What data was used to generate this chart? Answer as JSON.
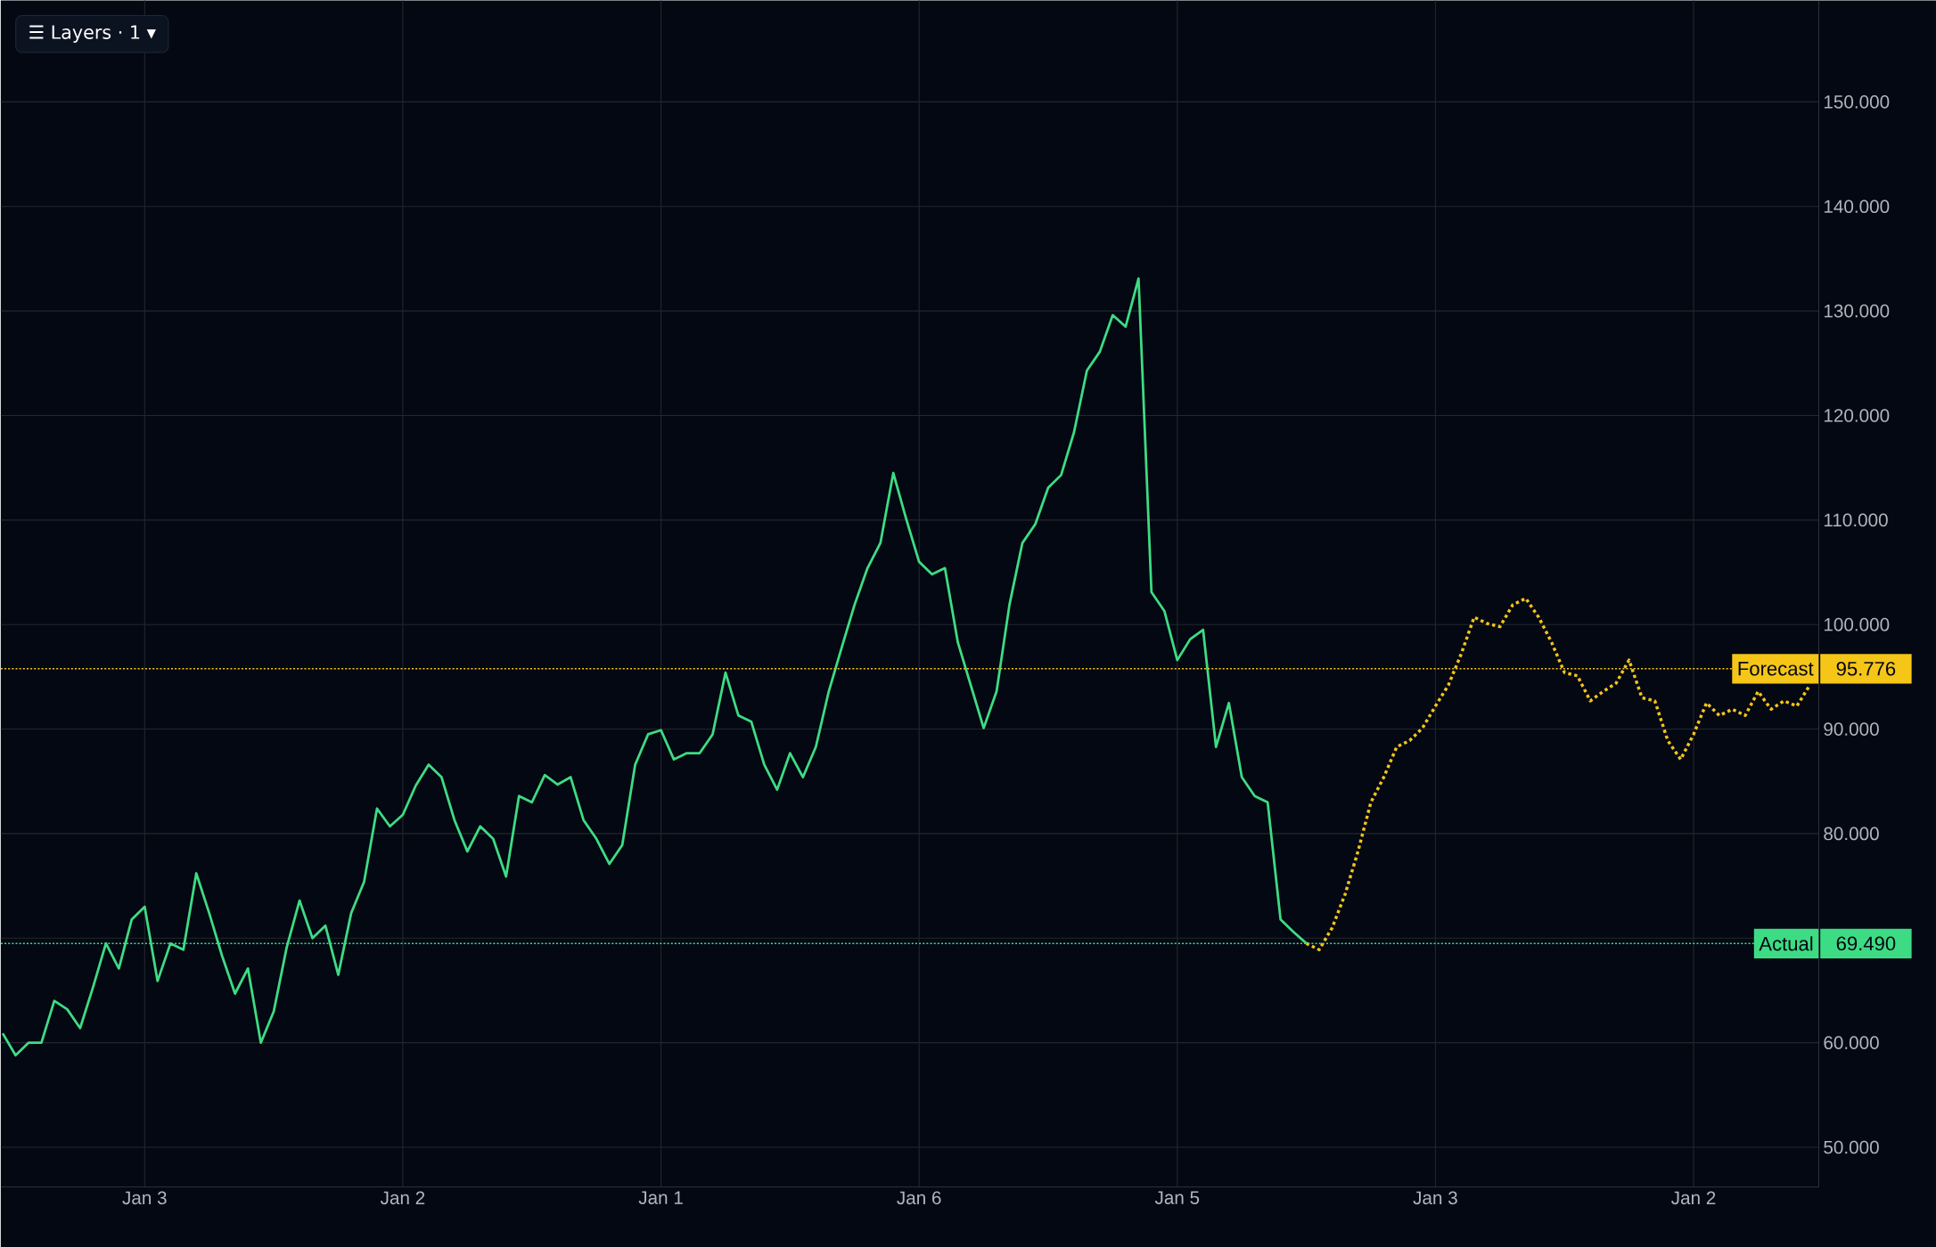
{
  "chart_data": {
    "type": "line",
    "categories": [
      null,
      null,
      null,
      null,
      null,
      null,
      null,
      null,
      null,
      null,
      null,
      "Jan 3",
      null,
      null,
      null,
      null,
      null,
      null,
      null,
      null,
      null,
      null,
      null,
      null,
      null,
      null,
      null,
      null,
      null,
      null,
      null,
      "Jan 2",
      null,
      null,
      null,
      null,
      null,
      null,
      null,
      null,
      null,
      null,
      null,
      null,
      null,
      null,
      null,
      null,
      null,
      null,
      null,
      "Jan 1",
      null,
      null,
      null,
      null,
      null,
      null,
      null,
      null,
      null,
      null,
      null,
      null,
      null,
      null,
      null,
      null,
      null,
      null,
      null,
      "Jan 6",
      null,
      null,
      null,
      null,
      null,
      null,
      null,
      null,
      null,
      null,
      null,
      null,
      null,
      null,
      null,
      null,
      null,
      null,
      null,
      "Jan 5",
      null,
      null,
      null,
      null,
      null,
      null,
      null,
      null,
      null,
      null,
      null,
      null,
      null,
      null,
      null,
      null,
      null,
      null,
      null,
      "Jan 3",
      null,
      null,
      null,
      null,
      null,
      null,
      null,
      null,
      null,
      null,
      null,
      null,
      null,
      null,
      null,
      null,
      null,
      null,
      null,
      "Jan 2",
      null,
      null,
      null,
      null,
      null,
      null,
      null,
      null,
      null
    ],
    "series": [
      {
        "color": "#3ddc84",
        "line_style": "solid",
        "values": [
          60.9,
          58.8,
          60,
          60,
          64,
          63.2,
          61.4,
          65.3,
          69.5,
          67.1,
          71.8,
          73,
          65.9,
          69.5,
          68.9,
          76.2,
          72.4,
          68.3,
          64.7,
          67.1,
          60,
          63,
          69.1,
          73.6,
          70,
          71.2,
          66.5,
          72.4,
          75.4,
          82.4,
          80.7,
          81.8,
          84.6,
          86.6,
          85.4,
          81.3,
          78.3,
          80.7,
          79.5,
          75.9,
          83.6,
          83,
          85.6,
          84.7,
          85.4,
          81.3,
          79.5,
          77.1,
          78.9,
          86.6,
          89.5,
          89.9,
          87.1,
          87.7,
          87.7,
          89.5,
          95.4,
          91.3,
          90.7,
          86.6,
          84.2,
          87.7,
          85.4,
          88.3,
          93.6,
          97.8,
          101.9,
          105.4,
          107.8,
          114.5,
          110.1,
          106,
          104.8,
          105.4,
          98.3,
          94.2,
          90.1,
          93.6,
          101.9,
          107.8,
          109.6,
          113.1,
          114.3,
          118.4,
          124.3,
          126.1,
          129.6,
          128.5,
          133.1,
          103.1,
          101.3,
          96.6,
          98.6,
          99.5,
          88.3,
          92.5,
          85.4,
          83.6,
          83,
          71.8,
          70.6,
          69.5,
          null,
          null,
          null,
          null,
          null,
          null,
          null,
          null,
          null,
          null,
          null,
          null,
          null,
          null,
          null,
          null,
          null,
          null,
          null,
          null,
          null,
          null,
          null,
          null,
          null,
          null,
          null,
          null,
          null,
          null,
          null,
          null,
          null,
          null,
          null,
          null,
          null,
          null,
          null
        ]
      },
      {
        "color": "#f5c518",
        "line_style": "dotted",
        "values": [
          null,
          null,
          null,
          null,
          null,
          null,
          null,
          null,
          null,
          null,
          null,
          null,
          null,
          null,
          null,
          null,
          null,
          null,
          null,
          null,
          null,
          null,
          null,
          null,
          null,
          null,
          null,
          null,
          null,
          null,
          null,
          null,
          null,
          null,
          null,
          null,
          null,
          null,
          null,
          null,
          null,
          null,
          null,
          null,
          null,
          null,
          null,
          null,
          null,
          null,
          null,
          null,
          null,
          null,
          null,
          null,
          null,
          null,
          null,
          null,
          null,
          null,
          null,
          null,
          null,
          null,
          null,
          null,
          null,
          null,
          null,
          null,
          null,
          null,
          null,
          null,
          null,
          null,
          null,
          null,
          null,
          null,
          null,
          null,
          null,
          null,
          null,
          null,
          null,
          null,
          null,
          null,
          null,
          null,
          null,
          null,
          null,
          null,
          null,
          null,
          null,
          69.5,
          68.9,
          71,
          74.2,
          78.3,
          83,
          85.4,
          88.3,
          88.9,
          90.1,
          92.2,
          94.2,
          97.2,
          100.7,
          100.1,
          99.8,
          101.9,
          102.5,
          100.7,
          98.3,
          95.4,
          95.1,
          92.7,
          93.6,
          94.4,
          96.6,
          93,
          92.7,
          88.9,
          87.1,
          89.5,
          92.5,
          91.3,
          91.9,
          91.3,
          93.6,
          91.9,
          92.7,
          92.2,
          94.2
        ]
      }
    ],
    "ylim": [
      46.2,
      159.7
    ],
    "yticks": [
      {
        "value": 50,
        "label": "50.000"
      },
      {
        "value": 60,
        "label": "60.000"
      },
      {
        "value": 70,
        "label": null
      },
      {
        "value": 80,
        "label": "80.000"
      },
      {
        "value": 90,
        "label": "90.000"
      },
      {
        "value": 100,
        "label": "100.000"
      },
      {
        "value": 110,
        "label": "110.000"
      },
      {
        "value": 120,
        "label": "120.000"
      },
      {
        "value": 130,
        "label": "130.000"
      },
      {
        "value": 140,
        "label": "140.000"
      },
      {
        "value": 150,
        "label": "150.000"
      }
    ],
    "grid": true,
    "ref_lines": [
      {
        "axis": "y",
        "value": 95.776,
        "label": "Forecast",
        "color": "#f5c518",
        "line_style": "dotted"
      },
      {
        "axis": "y",
        "value": 69.49,
        "label": "Actual",
        "color": "#3ddc84",
        "line_style": "dotted"
      }
    ],
    "annotations": [
      "☰ Layers · 1 ▾",
      "95.776",
      "69.490"
    ]
  }
}
